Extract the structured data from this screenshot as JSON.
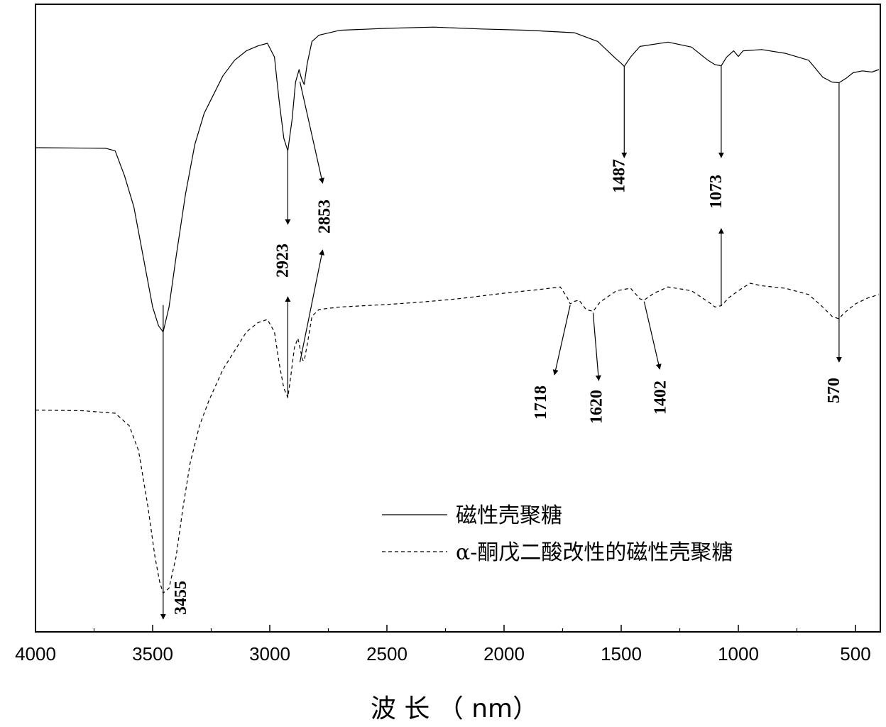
{
  "chart_data": {
    "type": "line",
    "title": "",
    "xlabel": "波 长 （ nm）",
    "ylabel": "",
    "x_reversed": true,
    "xlim": [
      4000,
      400
    ],
    "ylim": [
      0,
      100
    ],
    "x_ticks": [
      4000,
      3500,
      3000,
      2500,
      2000,
      1500,
      1000,
      500
    ],
    "y_ticks_shown": false,
    "grid": false,
    "legend_position": "lower-center",
    "series": [
      {
        "name": "磁性壳聚糖",
        "style": "solid",
        "points": [
          [
            4000,
            77.5
          ],
          [
            3700,
            77.4
          ],
          [
            3660,
            77.0
          ],
          [
            3620,
            73
          ],
          [
            3580,
            68
          ],
          [
            3540,
            60
          ],
          [
            3500,
            52
          ],
          [
            3475,
            49
          ],
          [
            3455,
            48
          ],
          [
            3430,
            52
          ],
          [
            3400,
            60
          ],
          [
            3360,
            70
          ],
          [
            3320,
            78
          ],
          [
            3280,
            83
          ],
          [
            3240,
            86
          ],
          [
            3200,
            89
          ],
          [
            3150,
            91.5
          ],
          [
            3100,
            93
          ],
          [
            3050,
            93.8
          ],
          [
            3010,
            94.2
          ],
          [
            2980,
            92
          ],
          [
            2960,
            85
          ],
          [
            2940,
            79
          ],
          [
            2923,
            77
          ],
          [
            2905,
            82
          ],
          [
            2890,
            88
          ],
          [
            2875,
            90
          ],
          [
            2865,
            88.6
          ],
          [
            2853,
            87.6
          ],
          [
            2840,
            91
          ],
          [
            2820,
            94.5
          ],
          [
            2790,
            95.5
          ],
          [
            2700,
            96.3
          ],
          [
            2500,
            96.6
          ],
          [
            2300,
            96.8
          ],
          [
            2100,
            96.5
          ],
          [
            1900,
            96.3
          ],
          [
            1700,
            95.9
          ],
          [
            1600,
            94.5
          ],
          [
            1530,
            92
          ],
          [
            1500,
            91
          ],
          [
            1487,
            90.5
          ],
          [
            1460,
            92
          ],
          [
            1420,
            93.7
          ],
          [
            1300,
            94.4
          ],
          [
            1200,
            93.6
          ],
          [
            1130,
            91.5
          ],
          [
            1100,
            90.8
          ],
          [
            1073,
            90.6
          ],
          [
            1050,
            92
          ],
          [
            1020,
            93
          ],
          [
            1000,
            92.1
          ],
          [
            980,
            93
          ],
          [
            900,
            93.2
          ],
          [
            800,
            92.6
          ],
          [
            700,
            91.5
          ],
          [
            640,
            88.8
          ],
          [
            600,
            88
          ],
          [
            570,
            87.9
          ],
          [
            540,
            88.6
          ],
          [
            510,
            89.5
          ],
          [
            470,
            89.8
          ],
          [
            430,
            89.6
          ],
          [
            400,
            90
          ]
        ]
      },
      {
        "name": "α-酮戊二酸改性的磁性壳聚糖",
        "style": "dashed",
        "points": [
          [
            4000,
            35.5
          ],
          [
            3800,
            35.4
          ],
          [
            3660,
            35
          ],
          [
            3600,
            33
          ],
          [
            3560,
            29
          ],
          [
            3520,
            20
          ],
          [
            3490,
            12
          ],
          [
            3470,
            8
          ],
          [
            3455,
            6.2
          ],
          [
            3430,
            7
          ],
          [
            3400,
            12
          ],
          [
            3370,
            20
          ],
          [
            3340,
            27
          ],
          [
            3300,
            33
          ],
          [
            3260,
            37
          ],
          [
            3200,
            42
          ],
          [
            3150,
            45
          ],
          [
            3100,
            48
          ],
          [
            3050,
            49.5
          ],
          [
            3010,
            50
          ],
          [
            2980,
            48
          ],
          [
            2960,
            43
          ],
          [
            2940,
            39
          ],
          [
            2923,
            37.5
          ],
          [
            2910,
            41
          ],
          [
            2895,
            45.5
          ],
          [
            2880,
            47
          ],
          [
            2860,
            43.5
          ],
          [
            2853,
            43.4
          ],
          [
            2840,
            46
          ],
          [
            2820,
            50.5
          ],
          [
            2790,
            51.6
          ],
          [
            2700,
            52
          ],
          [
            2500,
            52.4
          ],
          [
            2350,
            52.8
          ],
          [
            2200,
            53.3
          ],
          [
            2000,
            54.2
          ],
          [
            1850,
            54.8
          ],
          [
            1760,
            55.2
          ],
          [
            1730,
            53.5
          ],
          [
            1718,
            52.5
          ],
          [
            1700,
            52.9
          ],
          [
            1680,
            53.1
          ],
          [
            1650,
            51.6
          ],
          [
            1620,
            51.3
          ],
          [
            1590,
            52.8
          ],
          [
            1520,
            54.6
          ],
          [
            1460,
            55
          ],
          [
            1420,
            53.3
          ],
          [
            1402,
            53.1
          ],
          [
            1360,
            54.2
          ],
          [
            1300,
            55.2
          ],
          [
            1200,
            54.6
          ],
          [
            1120,
            52.6
          ],
          [
            1100,
            52
          ],
          [
            1073,
            52.2
          ],
          [
            1040,
            53.5
          ],
          [
            1000,
            54.6
          ],
          [
            950,
            55.8
          ],
          [
            900,
            55.4
          ],
          [
            800,
            55
          ],
          [
            700,
            54
          ],
          [
            640,
            52
          ],
          [
            600,
            50.5
          ],
          [
            570,
            50.1
          ],
          [
            550,
            51
          ],
          [
            500,
            52.5
          ],
          [
            450,
            53.4
          ],
          [
            400,
            54
          ]
        ]
      }
    ],
    "annotations": [
      {
        "label": "3455",
        "series": "both",
        "x": 3455,
        "arrow": "down"
      },
      {
        "label": "2923",
        "series": "both",
        "x": 2923,
        "arrow": "down-up"
      },
      {
        "label": "2853",
        "series": "both",
        "x": 2853,
        "arrow": "down-up"
      },
      {
        "label": "1487",
        "series": "磁性壳聚糖",
        "x": 1487,
        "arrow": "down"
      },
      {
        "label": "1073",
        "series": "both",
        "x": 1073,
        "arrow": "down-up"
      },
      {
        "label": "1718",
        "series": "α-酮戊二酸改性的磁性壳聚糖",
        "x": 1718,
        "arrow": "down"
      },
      {
        "label": "1620",
        "series": "α-酮戊二酸改性的磁性壳聚糖",
        "x": 1620,
        "arrow": "down"
      },
      {
        "label": "1402",
        "series": "α-酮戊二酸改性的磁性壳聚糖",
        "x": 1402,
        "arrow": "down"
      },
      {
        "label": "570",
        "series": "both",
        "x": 570,
        "arrow": "down"
      }
    ]
  }
}
